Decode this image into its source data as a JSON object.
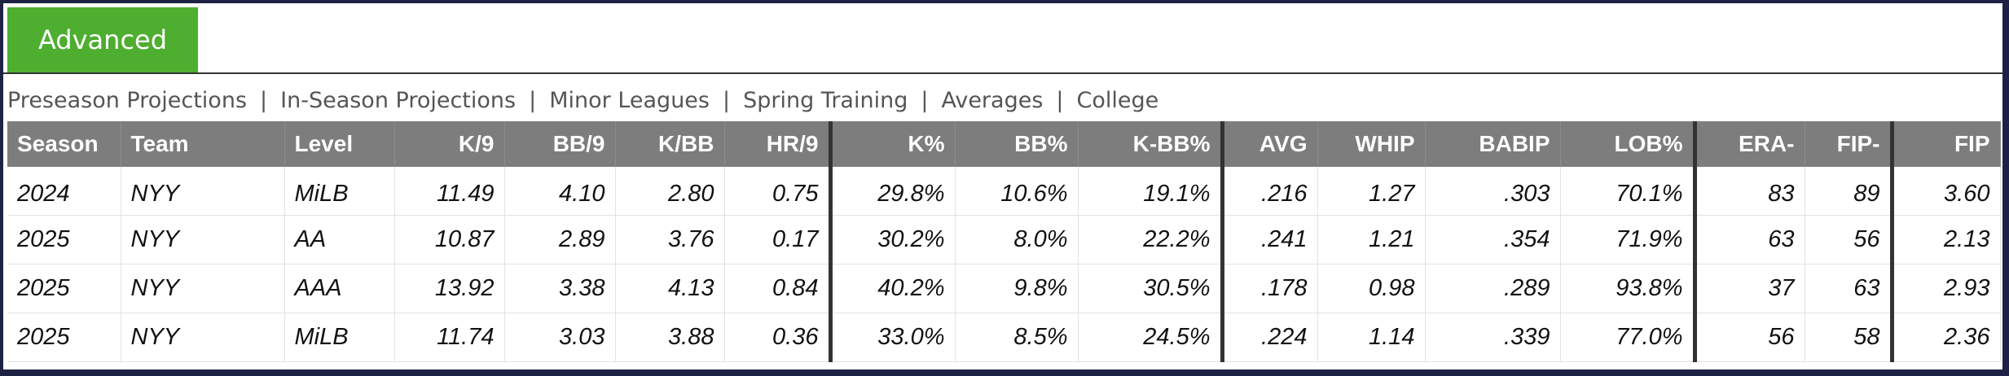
{
  "tabs": {
    "active": "Advanced"
  },
  "subnav": {
    "items": [
      "Preseason Projections",
      "In-Season Projections",
      "Minor Leagues",
      "Spring Training",
      "Averages",
      "College"
    ],
    "separator": "|"
  },
  "table": {
    "columns": [
      "Season",
      "Team",
      "Level",
      "K/9",
      "BB/9",
      "K/BB",
      "HR/9",
      "K%",
      "BB%",
      "K-BB%",
      "AVG",
      "WHIP",
      "BABIP",
      "LOB%",
      "ERA-",
      "FIP-",
      "FIP"
    ],
    "rows": [
      [
        "2024",
        "NYY",
        "MiLB",
        "11.49",
        "4.10",
        "2.80",
        "0.75",
        "29.8%",
        "10.6%",
        "19.1%",
        ".216",
        "1.27",
        ".303",
        "70.1%",
        "83",
        "89",
        "3.60"
      ],
      [
        "2025",
        "NYY",
        "AA",
        "10.87",
        "2.89",
        "3.76",
        "0.17",
        "30.2%",
        "8.0%",
        "22.2%",
        ".241",
        "1.21",
        ".354",
        "71.9%",
        "63",
        "56",
        "2.13"
      ],
      [
        "2025",
        "NYY",
        "AAA",
        "13.92",
        "3.38",
        "4.13",
        "0.84",
        "40.2%",
        "9.8%",
        "30.5%",
        ".178",
        "0.98",
        ".289",
        "93.8%",
        "37",
        "63",
        "2.93"
      ],
      [
        "2025",
        "NYY",
        "MiLB",
        "11.74",
        "3.03",
        "3.88",
        "0.36",
        "33.0%",
        "8.5%",
        "24.5%",
        ".224",
        "1.14",
        ".339",
        "77.0%",
        "56",
        "58",
        "2.36"
      ]
    ]
  },
  "colors": {
    "tab_active": "#4eae2f",
    "header_bg": "#7d7d7d",
    "frame": "#1d2244"
  }
}
